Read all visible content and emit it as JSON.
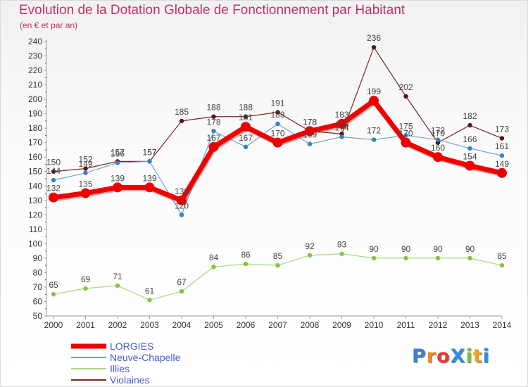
{
  "title": "Evolution de la Dotation Globale de Fonctionnement par Habitant",
  "subtitle": "(en € et par an)",
  "logo": {
    "text": "Proxiti",
    "letters": [
      {
        "ch": "P",
        "color": "#3a7fd8"
      },
      {
        "ch": "r",
        "color": "#f08a1c"
      },
      {
        "ch": "o",
        "color": "#e53c2e"
      },
      {
        "ch": "X",
        "color": "#2e8ee0"
      },
      {
        "ch": "i",
        "color": "#7cc23a"
      },
      {
        "ch": "t",
        "color": "#f0a020"
      },
      {
        "ch": "i",
        "color": "#2e8ee0"
      }
    ]
  },
  "chart_data": {
    "type": "line",
    "title": "Evolution de la Dotation Globale de Fonctionnement par Habitant",
    "subtitle": "(en € et par an)",
    "x": [
      "2000",
      "2001",
      "2002",
      "2003",
      "2004",
      "2005",
      "2006",
      "2007",
      "2008",
      "2009",
      "2010",
      "2011",
      "2012",
      "2013",
      "2014"
    ],
    "ylim": [
      50,
      240
    ],
    "yticks": [
      50,
      60,
      70,
      80,
      90,
      100,
      110,
      120,
      130,
      140,
      150,
      160,
      170,
      180,
      190,
      200,
      210,
      220,
      230,
      240
    ],
    "grid": false,
    "legend": "bottom-left",
    "series": [
      {
        "name": "Violaines",
        "color": "#7a2626",
        "width": 1.2,
        "marker": "#5a1414",
        "values": [
          150,
          152,
          157,
          157,
          185,
          188,
          188,
          191,
          178,
          176,
          236,
          202,
          170,
          182,
          173
        ]
      },
      {
        "name": "Neuve-Chapelle",
        "color": "#6ea4cf",
        "width": 1.2,
        "marker": "#3d7fc0",
        "values": [
          144,
          149,
          156,
          157,
          120,
          178,
          167,
          183,
          169,
          174,
          172,
          175,
          172,
          166,
          161
        ]
      },
      {
        "name": "Illies",
        "color": "#a8d880",
        "width": 1.2,
        "marker": "#86c440",
        "values": [
          65,
          69,
          71,
          61,
          67,
          84,
          86,
          85,
          92,
          93,
          90,
          90,
          90,
          90,
          85
        ]
      },
      {
        "name": "LORGIES",
        "color": "#ee0000",
        "width": 7,
        "marker": "#ee0000",
        "values": [
          132,
          135,
          139,
          139,
          130,
          167,
          181,
          170,
          178,
          183,
          199,
          170,
          160,
          154,
          149
        ]
      }
    ],
    "labels_shown": {
      "Violaines": [
        150,
        152,
        157,
        157,
        185,
        188,
        188,
        191,
        178,
        176,
        236,
        202,
        170,
        182,
        173
      ],
      "Neuve-Chapelle": [
        144,
        149,
        156,
        157,
        120,
        178,
        167,
        183,
        169,
        174,
        172,
        175,
        172,
        166,
        161
      ],
      "Illies": [
        65,
        69,
        71,
        61,
        67,
        84,
        86,
        85,
        92,
        93,
        90,
        90,
        90,
        90,
        85
      ],
      "LORGIES": [
        132,
        135,
        139,
        139,
        130,
        167,
        181,
        170,
        178,
        183,
        199,
        170,
        160,
        154,
        149
      ]
    }
  },
  "legend": [
    {
      "label": "LORGIES",
      "color": "#ee0000",
      "thickness": 7
    },
    {
      "label": "Neuve-Chapelle",
      "color": "#6ea4cf",
      "thickness": 2
    },
    {
      "label": "Illies",
      "color": "#a8d880",
      "thickness": 2
    },
    {
      "label": "Violaines",
      "color": "#7a2626",
      "thickness": 2
    }
  ]
}
